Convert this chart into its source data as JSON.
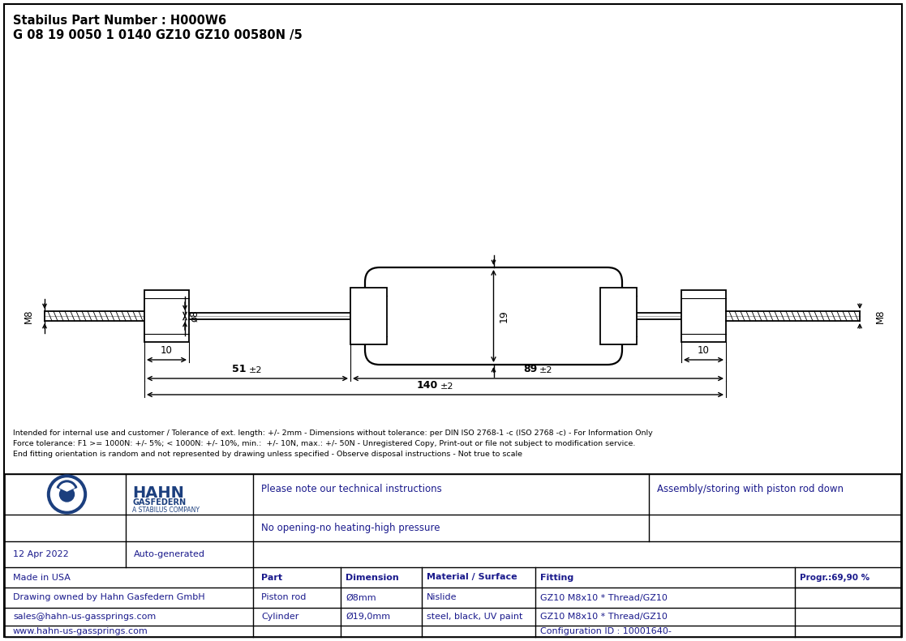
{
  "title_line1": "Stabilus Part Number : H000W6",
  "title_line2": "G 08 19 0050 1 0140 GZ10 GZ10 00580N /5",
  "bg_color": "#ffffff",
  "border_color": "#000000",
  "drawing_color": "#000000",
  "dim_color": "#000000",
  "text_color": "#1a1a8c",
  "disclaimer_text": "Intended for internal use and customer / Tolerance of ext. length: +/- 2mm - Dimensions without tolerance: per DIN ISO 2768-1 -c (ISO 2768 -c) - For Information Only\nForce tolerance: F1 >= 1000N: +/- 5%; < 1000N: +/- 10%, min.:  +/- 10N, max.: +/- 50N - Unregistered Copy, Print-out or file not subject to modification service.\nEnd fitting orientation is random and not represented by drawing unless specified - Observe disposal instructions - Not true to scale",
  "note1": "Please note our technical instructions",
  "note2": "No opening-no heating-high pressure",
  "note3": "Assembly/storing with piston rod down",
  "date": "12 Apr 2022",
  "generated": "Auto-generated",
  "made_in": "Made in USA",
  "drawing_owned": "Drawing owned by Hahn Gasfedern GmbH",
  "email": "sales@hahn-us-gassprings.com",
  "website": "www.hahn-us-gassprings.com",
  "progr": "Progr.:69,90 %",
  "col_headers": [
    "Part",
    "Dimension",
    "Material / Surface",
    "Fitting"
  ],
  "row1": [
    "Piston rod",
    "Ø8mm",
    "Nislide",
    "GZ10 M8x10 * Thread/GZ10"
  ],
  "row2": [
    "Cylinder",
    "Ø19,0mm",
    "steel, black, UV paint",
    "GZ10 M8x10 * Thread/GZ10"
  ],
  "row3": [
    "",
    "",
    "",
    "Configuration ID : 10001640-"
  ]
}
